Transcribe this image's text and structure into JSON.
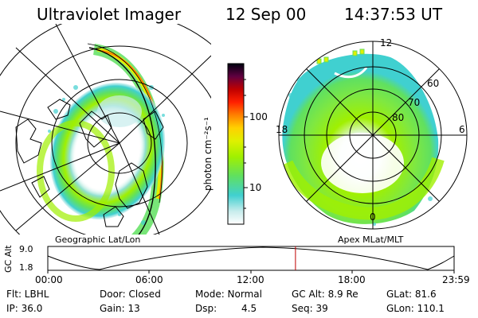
{
  "header": {
    "instrument": "Ultraviolet Imager",
    "date": "12 Sep 00",
    "time": "14:37:53 UT"
  },
  "left_panel": {
    "caption": "Geographic Lat/Lon"
  },
  "right_panel": {
    "caption": "Apex MLat/MLT",
    "mlt_labels": {
      "top": "12",
      "left": "18",
      "right": "6",
      "bottom": "0"
    },
    "lat_labels": [
      "60",
      "70",
      "80"
    ]
  },
  "colorbar": {
    "unit_label": "photon cm⁻²s⁻¹",
    "ticks": [
      "100",
      "10"
    ],
    "scale": "log",
    "colors": [
      "#ffffff",
      "#bfe8e8",
      "#40d0d0",
      "#60e060",
      "#a0f000",
      "#e0f000",
      "#ffd000",
      "#ff8000",
      "#ff2000",
      "#c00000",
      "#800030",
      "#200050",
      "#000000"
    ]
  },
  "altitude_strip": {
    "ylabel": "GC Alt",
    "y_ticks": [
      "9.0",
      "1.8"
    ],
    "x_ticks": [
      "00:00",
      "06:00",
      "12:00",
      "18:00",
      "23:59"
    ],
    "current_time_hours": 14.63,
    "marker_color": "#c00000"
  },
  "info": {
    "filter": "Flt: LBHL",
    "ip": "IP: 36.0",
    "door": "Door: Closed",
    "gain": "Gain: 13",
    "mode": "Mode: Normal",
    "dsp_label": "Dsp:",
    "dsp_value": "4.5",
    "gc_alt": "GC Alt: 8.9 Re",
    "seq": "Seq: 39",
    "glat": "GLat:  81.6",
    "glon": "GLon: 110.1"
  },
  "icons": {
    "left_map": "geographic-map-icon",
    "right_map": "polar-dial-icon"
  }
}
